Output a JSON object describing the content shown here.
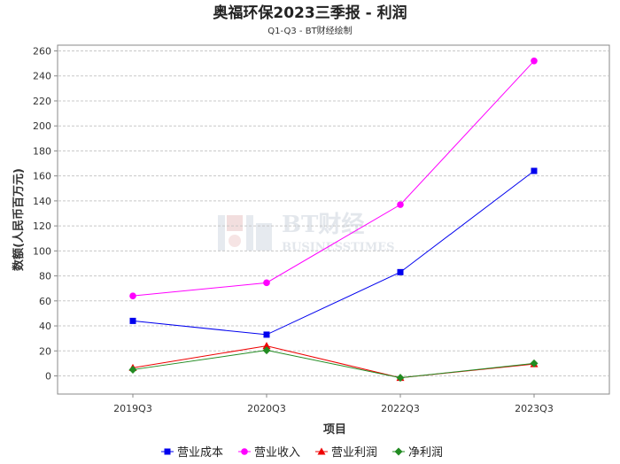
{
  "chart_data": {
    "type": "line",
    "title": "奥福环保2023三季报 - 利润",
    "subtitle": "Q1-Q3 - BT财经绘制",
    "xlabel": "项目",
    "ylabel": "数额(人民币百万元)",
    "categories": [
      "2019Q3",
      "2020Q3",
      "2022Q3",
      "2023Q3"
    ],
    "ylim": [
      -14,
      262
    ],
    "yticks": [
      0,
      20,
      40,
      60,
      80,
      100,
      120,
      140,
      160,
      180,
      200,
      220,
      240,
      260
    ],
    "grid": true,
    "legend_position": "bottom",
    "series": [
      {
        "name": "营业成本",
        "color": "#0000ee",
        "marker": "square",
        "values": [
          44,
          33,
          83,
          164
        ]
      },
      {
        "name": "营业收入",
        "color": "#ff00ff",
        "marker": "circle",
        "values": [
          64,
          74.5,
          137,
          252
        ]
      },
      {
        "name": "营业利润",
        "color": "#ee0000",
        "marker": "triangle",
        "values": [
          6.5,
          24,
          -1.5,
          9.5
        ]
      },
      {
        "name": "净利润",
        "color": "#228b22",
        "marker": "diamond",
        "values": [
          5,
          20.5,
          -1.5,
          10
        ]
      }
    ]
  },
  "watermark": {
    "brand": "BT财经",
    "sub": "BUSINESSTIMES"
  }
}
